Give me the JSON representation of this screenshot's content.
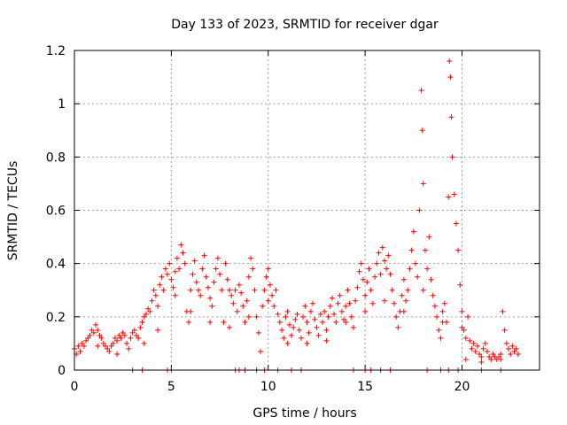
{
  "chart_data": {
    "type": "scatter",
    "title": "Day 133 of 2023, SRMTID for receiver dgar",
    "xlabel": "GPS time / hours",
    "ylabel": "SRMTID / TECUs",
    "xlim": [
      0,
      24
    ],
    "ylim": [
      0,
      1.2
    ],
    "xticks": [
      0,
      5,
      10,
      15,
      20
    ],
    "xtick_labels": [
      "0",
      "5",
      "10",
      "15",
      "20"
    ],
    "yticks": [
      0,
      0.2,
      0.4,
      0.6,
      0.8,
      1.0,
      1.2
    ],
    "ytick_labels": [
      "0",
      "0.2",
      "0.4",
      "0.6",
      "0.8",
      "1",
      "1.2"
    ],
    "grid": true,
    "marker": "plus",
    "marker_color": "#ff0000",
    "series": [
      {
        "name": "SRMTID",
        "points": [
          [
            0.0,
            0.08
          ],
          [
            0.1,
            0.06
          ],
          [
            0.2,
            0.09
          ],
          [
            0.3,
            0.07
          ],
          [
            0.4,
            0.1
          ],
          [
            0.5,
            0.09
          ],
          [
            0.6,
            0.11
          ],
          [
            0.7,
            0.12
          ],
          [
            0.8,
            0.13
          ],
          [
            0.9,
            0.15
          ],
          [
            1.0,
            0.14
          ],
          [
            1.1,
            0.17
          ],
          [
            1.2,
            0.15
          ],
          [
            1.3,
            0.13
          ],
          [
            1.4,
            0.12
          ],
          [
            1.5,
            0.1
          ],
          [
            1.6,
            0.09
          ],
          [
            1.7,
            0.08
          ],
          [
            1.8,
            0.07
          ],
          [
            1.9,
            0.09
          ],
          [
            2.0,
            0.1
          ],
          [
            2.1,
            0.12
          ],
          [
            2.2,
            0.11
          ],
          [
            2.3,
            0.13
          ],
          [
            2.4,
            0.12
          ],
          [
            2.5,
            0.14
          ],
          [
            2.6,
            0.13
          ],
          [
            2.7,
            0.1
          ],
          [
            2.8,
            0.08
          ],
          [
            2.9,
            0.12
          ],
          [
            3.0,
            0.14
          ],
          [
            3.1,
            0.15
          ],
          [
            3.2,
            0.13
          ],
          [
            3.3,
            0.12
          ],
          [
            3.4,
            0.16
          ],
          [
            3.5,
            0.18
          ],
          [
            3.6,
            0.2
          ],
          [
            3.7,
            0.21
          ],
          [
            3.8,
            0.23
          ],
          [
            3.9,
            0.22
          ],
          [
            4.0,
            0.26
          ],
          [
            4.1,
            0.3
          ],
          [
            4.2,
            0.28
          ],
          [
            4.3,
            0.24
          ],
          [
            4.4,
            0.32
          ],
          [
            4.5,
            0.35
          ],
          [
            4.6,
            0.3
          ],
          [
            4.7,
            0.38
          ],
          [
            4.8,
            0.36
          ],
          [
            4.9,
            0.4
          ],
          [
            5.0,
            0.34
          ],
          [
            5.1,
            0.31
          ],
          [
            5.2,
            0.37
          ],
          [
            5.3,
            0.42
          ],
          [
            5.4,
            0.38
          ],
          [
            5.5,
            0.47
          ],
          [
            5.6,
            0.44
          ],
          [
            5.7,
            0.4
          ],
          [
            5.8,
            0.22
          ],
          [
            5.9,
            0.18
          ],
          [
            6.0,
            0.3
          ],
          [
            6.1,
            0.36
          ],
          [
            6.2,
            0.41
          ],
          [
            6.3,
            0.33
          ],
          [
            6.4,
            0.3
          ],
          [
            6.5,
            0.28
          ],
          [
            6.6,
            0.38
          ],
          [
            6.7,
            0.43
          ],
          [
            6.8,
            0.35
          ],
          [
            6.9,
            0.31
          ],
          [
            7.0,
            0.27
          ],
          [
            7.1,
            0.24
          ],
          [
            7.2,
            0.33
          ],
          [
            7.3,
            0.38
          ],
          [
            7.4,
            0.42
          ],
          [
            7.5,
            0.36
          ],
          [
            7.6,
            0.3
          ],
          [
            7.7,
            0.18
          ],
          [
            7.8,
            0.4
          ],
          [
            7.9,
            0.34
          ],
          [
            8.0,
            0.3
          ],
          [
            8.1,
            0.28
          ],
          [
            8.2,
            0.25
          ],
          [
            8.3,
            0.3
          ],
          [
            8.4,
            0.22
          ],
          [
            8.5,
            0.32
          ],
          [
            8.6,
            0.29
          ],
          [
            8.7,
            0.24
          ],
          [
            8.8,
            0.18
          ],
          [
            8.9,
            0.26
          ],
          [
            9.0,
            0.35
          ],
          [
            9.1,
            0.42
          ],
          [
            9.2,
            0.38
          ],
          [
            9.3,
            0.3
          ],
          [
            9.4,
            0.2
          ],
          [
            9.5,
            0.14
          ],
          [
            9.6,
            0.07
          ],
          [
            9.7,
            0.24
          ],
          [
            9.8,
            0.3
          ],
          [
            9.9,
            0.35
          ],
          [
            10.0,
            0.38
          ],
          [
            10.1,
            0.32
          ],
          [
            10.2,
            0.28
          ],
          [
            10.3,
            0.24
          ],
          [
            10.4,
            0.3
          ],
          [
            10.5,
            0.21
          ],
          [
            10.6,
            0.18
          ],
          [
            10.7,
            0.15
          ],
          [
            10.8,
            0.12
          ],
          [
            10.9,
            0.2
          ],
          [
            11.0,
            0.22
          ],
          [
            11.1,
            0.17
          ],
          [
            11.2,
            0.13
          ],
          [
            11.3,
            0.16
          ],
          [
            11.4,
            0.19
          ],
          [
            11.5,
            0.21
          ],
          [
            11.6,
            0.15
          ],
          [
            11.7,
            0.12
          ],
          [
            11.8,
            0.2
          ],
          [
            11.9,
            0.24
          ],
          [
            12.0,
            0.18
          ],
          [
            12.1,
            0.14
          ],
          [
            12.2,
            0.22
          ],
          [
            12.3,
            0.25
          ],
          [
            12.4,
            0.19
          ],
          [
            12.5,
            0.16
          ],
          [
            12.6,
            0.13
          ],
          [
            12.7,
            0.21
          ],
          [
            12.8,
            0.18
          ],
          [
            12.9,
            0.22
          ],
          [
            13.0,
            0.15
          ],
          [
            13.1,
            0.2
          ],
          [
            13.2,
            0.24
          ],
          [
            13.3,
            0.27
          ],
          [
            13.4,
            0.21
          ],
          [
            13.5,
            0.18
          ],
          [
            13.6,
            0.25
          ],
          [
            13.7,
            0.28
          ],
          [
            13.8,
            0.22
          ],
          [
            13.9,
            0.19
          ],
          [
            14.0,
            0.24
          ],
          [
            14.1,
            0.3
          ],
          [
            14.2,
            0.25
          ],
          [
            14.3,
            0.2
          ],
          [
            14.4,
            0.16
          ],
          [
            14.5,
            0.26
          ],
          [
            14.6,
            0.31
          ],
          [
            14.7,
            0.37
          ],
          [
            14.8,
            0.4
          ],
          [
            14.9,
            0.34
          ],
          [
            15.0,
            0.28
          ],
          [
            15.1,
            0.33
          ],
          [
            15.2,
            0.38
          ],
          [
            15.3,
            0.3
          ],
          [
            15.4,
            0.25
          ],
          [
            15.5,
            0.35
          ],
          [
            15.6,
            0.4
          ],
          [
            15.7,
            0.44
          ],
          [
            15.8,
            0.36
          ],
          [
            15.9,
            0.46
          ],
          [
            16.0,
            0.41
          ],
          [
            16.1,
            0.38
          ],
          [
            16.2,
            0.43
          ],
          [
            16.3,
            0.36
          ],
          [
            16.4,
            0.3
          ],
          [
            16.5,
            0.25
          ],
          [
            16.6,
            0.2
          ],
          [
            16.7,
            0.16
          ],
          [
            16.8,
            0.22
          ],
          [
            16.9,
            0.28
          ],
          [
            17.0,
            0.34
          ],
          [
            17.1,
            0.26
          ],
          [
            17.2,
            0.3
          ],
          [
            17.3,
            0.38
          ],
          [
            17.4,
            0.45
          ],
          [
            17.5,
            0.52
          ],
          [
            17.6,
            0.4
          ],
          [
            17.7,
            0.35
          ],
          [
            17.8,
            0.6
          ],
          [
            17.9,
            1.05
          ],
          [
            17.95,
            0.9
          ],
          [
            18.0,
            0.7
          ],
          [
            18.1,
            0.45
          ],
          [
            18.2,
            0.38
          ],
          [
            18.3,
            0.5
          ],
          [
            18.4,
            0.34
          ],
          [
            18.5,
            0.28
          ],
          [
            18.6,
            0.24
          ],
          [
            18.7,
            0.2
          ],
          [
            18.8,
            0.15
          ],
          [
            18.9,
            0.12
          ],
          [
            19.0,
            0.22
          ],
          [
            19.1,
            0.25
          ],
          [
            19.2,
            0.18
          ],
          [
            19.3,
            0.65
          ],
          [
            19.35,
            1.16
          ],
          [
            19.4,
            1.1
          ],
          [
            19.45,
            0.95
          ],
          [
            19.5,
            0.8
          ],
          [
            19.6,
            0.66
          ],
          [
            19.7,
            0.55
          ],
          [
            19.8,
            0.45
          ],
          [
            19.9,
            0.32
          ],
          [
            20.0,
            0.22
          ],
          [
            20.1,
            0.15
          ],
          [
            20.2,
            0.12
          ],
          [
            20.3,
            0.2
          ],
          [
            20.4,
            0.11
          ],
          [
            20.5,
            0.08
          ],
          [
            20.6,
            0.1
          ],
          [
            20.7,
            0.07
          ],
          [
            20.8,
            0.09
          ],
          [
            20.9,
            0.06
          ],
          [
            21.0,
            0.05
          ],
          [
            21.1,
            0.08
          ],
          [
            21.2,
            0.1
          ],
          [
            21.3,
            0.07
          ],
          [
            21.4,
            0.05
          ],
          [
            21.5,
            0.04
          ],
          [
            21.6,
            0.06
          ],
          [
            21.7,
            0.05
          ],
          [
            21.8,
            0.04
          ],
          [
            21.9,
            0.05
          ],
          [
            22.0,
            0.06
          ],
          [
            22.1,
            0.22
          ],
          [
            22.2,
            0.15
          ],
          [
            22.3,
            0.1
          ],
          [
            22.4,
            0.08
          ],
          [
            22.5,
            0.06
          ],
          [
            22.6,
            0.09
          ],
          [
            22.7,
            0.07
          ],
          [
            22.8,
            0.08
          ],
          [
            22.9,
            0.06
          ],
          [
            1.2,
            0.09
          ],
          [
            2.2,
            0.06
          ],
          [
            3.6,
            0.1
          ],
          [
            4.3,
            0.15
          ],
          [
            5.2,
            0.28
          ],
          [
            6.0,
            0.22
          ],
          [
            7.0,
            0.18
          ],
          [
            8.0,
            0.16
          ],
          [
            9.0,
            0.2
          ],
          [
            10.0,
            0.26
          ],
          [
            11.0,
            0.1
          ],
          [
            12.0,
            0.1
          ],
          [
            13.0,
            0.11
          ],
          [
            14.0,
            0.18
          ],
          [
            15.0,
            0.22
          ],
          [
            16.0,
            0.26
          ],
          [
            17.0,
            0.22
          ],
          [
            18.0,
            0.3
          ],
          [
            19.0,
            0.18
          ],
          [
            20.0,
            0.16
          ],
          [
            20.2,
            0.04
          ],
          [
            21.0,
            0.03
          ],
          [
            22.0,
            0.04
          ],
          [
            3.0,
            0.0
          ],
          [
            3.5,
            0.0
          ],
          [
            4.8,
            0.0
          ],
          [
            5.0,
            0.0
          ],
          [
            8.3,
            0.0
          ],
          [
            8.5,
            0.0
          ],
          [
            8.8,
            0.0
          ],
          [
            9.4,
            0.0
          ],
          [
            9.8,
            0.0
          ],
          [
            10.5,
            0.0
          ],
          [
            11.2,
            0.0
          ],
          [
            11.7,
            0.0
          ],
          [
            14.4,
            0.0
          ],
          [
            15.0,
            0.0
          ],
          [
            15.3,
            0.0
          ],
          [
            15.8,
            0.0
          ],
          [
            16.3,
            0.0
          ],
          [
            18.2,
            0.0
          ],
          [
            18.9,
            0.0
          ],
          [
            19.3,
            0.0
          ],
          [
            19.8,
            0.0
          ],
          [
            21.0,
            0.0
          ],
          [
            22.0,
            0.0
          ]
        ]
      }
    ]
  }
}
